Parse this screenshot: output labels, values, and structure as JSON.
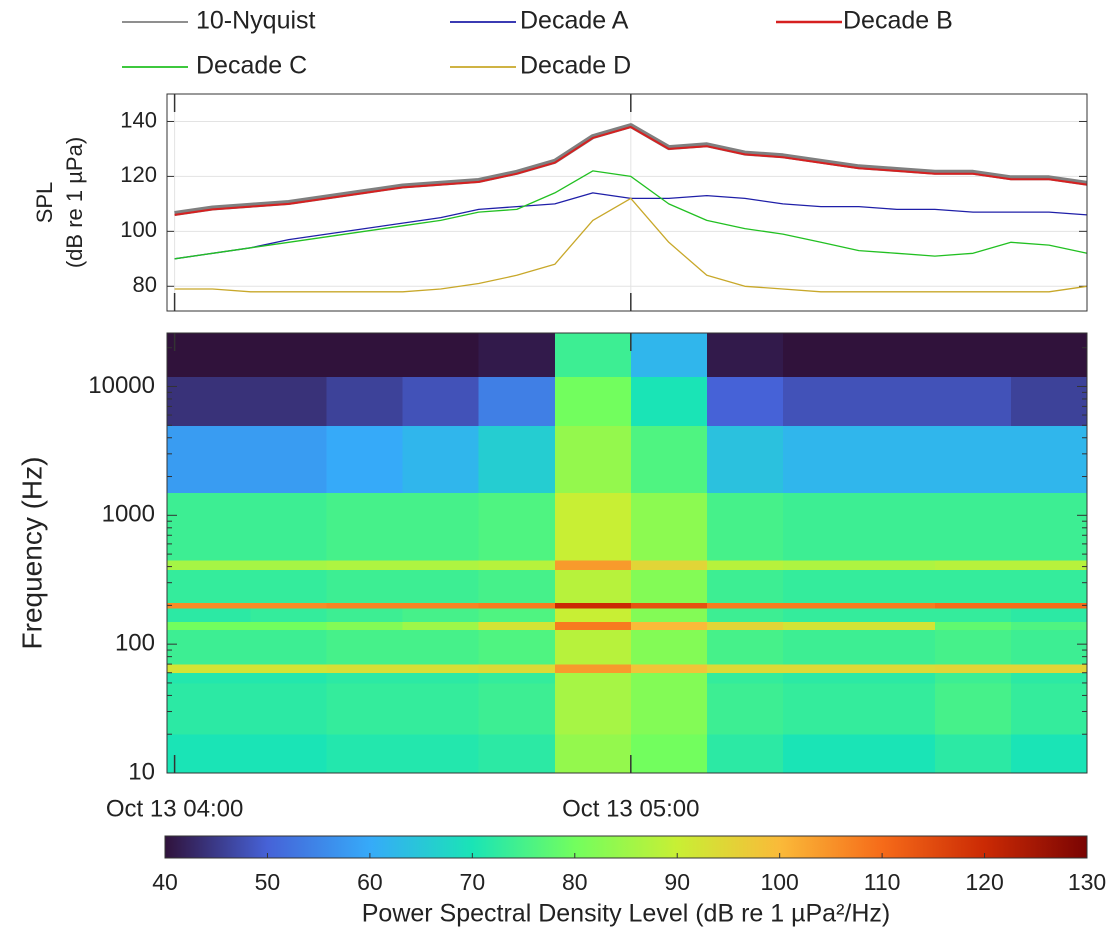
{
  "chart_data": [
    {
      "type": "line",
      "ylabel": [
        "SPL",
        "(dB re 1 µPa)"
      ],
      "ylim": [
        71,
        150
      ],
      "yticks": [
        80,
        100,
        120,
        140
      ],
      "grid": true,
      "legend": "top",
      "x": [
        "Oct 13 04:00",
        "Oct 13 04:05",
        "Oct 13 04:10",
        "Oct 13 04:15",
        "Oct 13 04:20",
        "Oct 13 04:25",
        "Oct 13 04:30",
        "Oct 13 04:35",
        "Oct 13 04:40",
        "Oct 13 04:45",
        "Oct 13 04:50",
        "Oct 13 04:55",
        "Oct 13 05:00",
        "Oct 13 05:05",
        "Oct 13 05:10",
        "Oct 13 05:15",
        "Oct 13 05:20",
        "Oct 13 05:25",
        "Oct 13 05:30",
        "Oct 13 05:35",
        "Oct 13 05:40",
        "Oct 13 05:45",
        "Oct 13 05:50",
        "Oct 13 05:55",
        "Oct 13 06:00"
      ],
      "series": [
        {
          "name": "10-Nyquist",
          "color": "#7f7f7f",
          "values": [
            106.5,
            108.5,
            109.5,
            110.5,
            112.5,
            114.5,
            116.5,
            117.5,
            118.5,
            121.5,
            125.5,
            134.5,
            138.5,
            130.5,
            131.5,
            128.5,
            127.5,
            125.5,
            123.5,
            122.5,
            121.5,
            121.5,
            119.5,
            119.5,
            117.5
          ]
        },
        {
          "name": "Decade A",
          "color": "#1f1fa8",
          "values": [
            90,
            92,
            94,
            97,
            99,
            101,
            103,
            105,
            108,
            109,
            110,
            114,
            112,
            112,
            113,
            112,
            110,
            109,
            109,
            108,
            108,
            107,
            107,
            107,
            106
          ]
        },
        {
          "name": "Decade B",
          "color": "#d62020",
          "values": [
            106,
            108,
            109,
            110,
            112,
            114,
            116,
            117,
            118,
            121,
            125,
            134,
            138,
            130,
            131,
            128,
            127,
            125,
            123,
            122,
            121,
            121,
            119,
            119,
            117
          ]
        },
        {
          "name": "Decade C",
          "color": "#22c022",
          "values": [
            90,
            92,
            94,
            96,
            98,
            100,
            102,
            104,
            107,
            108,
            114,
            122,
            120,
            110,
            104,
            101,
            99,
            96,
            93,
            92,
            91,
            92,
            96,
            95,
            92
          ]
        },
        {
          "name": "Decade D",
          "color": "#c8a82a",
          "values": [
            79,
            79,
            78,
            78,
            78,
            78,
            78,
            79,
            81,
            84,
            88,
            104,
            112,
            96,
            84,
            80,
            79,
            78,
            78,
            78,
            78,
            78,
            78,
            78,
            80
          ]
        }
      ]
    },
    {
      "type": "heatmap",
      "ylabel": "Frequency (Hz)",
      "xlim": [
        "Oct 13 03:59",
        "Oct 13 06:00"
      ],
      "xticks": [
        "Oct 13 04:00",
        "Oct 13 05:00"
      ],
      "ylim": [
        10,
        26000
      ],
      "yticks": [
        10,
        100,
        1000,
        10000
      ],
      "log": true,
      "xbins": [
        "Oct 13 04:00",
        "Oct 13 04:10",
        "Oct 13 04:20",
        "Oct 13 04:30",
        "Oct 13 04:40",
        "Oct 13 04:50",
        "Oct 13 05:00",
        "Oct 13 05:10",
        "Oct 13 05:20",
        "Oct 13 05:30",
        "Oct 13 05:40",
        "Oct 13 05:50",
        "Oct 13 06:00"
      ],
      "ybins": [
        10,
        20,
        50,
        60,
        70,
        130,
        150,
        190,
        210,
        380,
        450,
        1500,
        5000,
        12000,
        26000
      ],
      "values": [
        [
          70,
          70,
          71,
          71,
          72,
          84,
          80,
          72,
          70,
          70,
          72,
          70
        ],
        [
          72,
          72,
          73,
          73,
          74,
          86,
          82,
          74,
          73,
          73,
          75,
          73
        ],
        [
          71,
          71,
          72,
          72,
          73,
          86,
          82,
          73,
          72,
          72,
          74,
          72
        ],
        [
          92,
          92,
          93,
          93,
          94,
          104,
          98,
          94,
          94,
          94,
          95,
          95
        ],
        [
          74,
          74,
          75,
          75,
          76,
          88,
          82,
          75,
          74,
          74,
          75,
          74
        ],
        [
          80,
          80,
          82,
          85,
          92,
          108,
          100,
          95,
          92,
          92,
          78,
          76
        ],
        [
          72,
          73,
          74,
          75,
          76,
          90,
          82,
          74,
          73,
          73,
          73,
          72
        ],
        [
          106,
          106,
          107,
          107,
          108,
          120,
          114,
          108,
          108,
          108,
          110,
          110
        ],
        [
          73,
          73,
          74,
          74,
          75,
          88,
          82,
          74,
          73,
          73,
          73,
          73
        ],
        [
          86,
          86,
          87,
          87,
          88,
          104,
          95,
          88,
          87,
          87,
          88,
          88
        ],
        [
          74,
          74,
          75,
          75,
          76,
          90,
          83,
          75,
          74,
          74,
          74,
          74
        ],
        [
          58,
          58,
          60,
          62,
          66,
          84,
          76,
          64,
          62,
          62,
          62,
          62
        ],
        [
          44,
          44,
          46,
          48,
          54,
          80,
          70,
          50,
          48,
          48,
          48,
          46
        ],
        [
          40,
          40,
          40,
          40,
          41,
          74,
          62,
          41,
          40,
          40,
          40,
          40
        ]
      ],
      "clim": [
        40,
        130
      ],
      "cticks": [
        40,
        50,
        60,
        70,
        80,
        90,
        100,
        110,
        120,
        130
      ],
      "colormap": [
        "#30123b",
        "#4662d7",
        "#36aaf9",
        "#1ae4b6",
        "#72fe5e",
        "#c8ef34",
        "#faba39",
        "#f66b19",
        "#cb2a04",
        "#7a0403"
      ],
      "colorbar_label": "Power Spectral Density Level (dB re 1 µPa²/Hz)"
    }
  ]
}
